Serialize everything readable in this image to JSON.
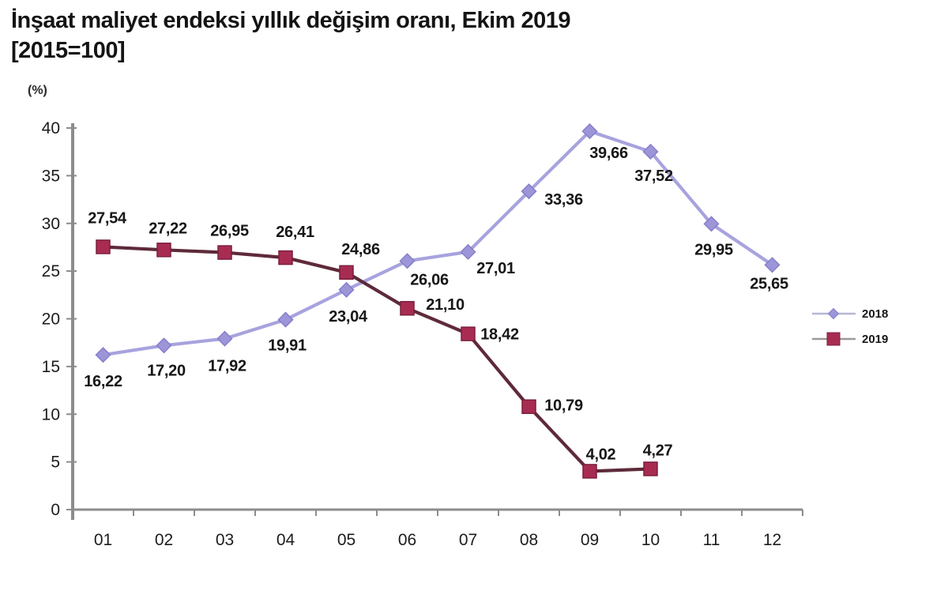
{
  "header": {
    "title_line1": "İnşaat maliyet endeksi yıllık değişim oranı, Ekim 2019",
    "title_line2": "[2015=100]"
  },
  "chart_data": {
    "type": "line",
    "title": "İnşaat maliyet endeksi yıllık değişim oranı, Ekim 2019 [2015=100]",
    "ylabel": "(%)",
    "xlabel": "",
    "ylim": [
      0,
      40
    ],
    "yticks": [
      0,
      5,
      10,
      15,
      20,
      25,
      30,
      35,
      40
    ],
    "grid": false,
    "legend_position": "right",
    "categories": [
      "01",
      "02",
      "03",
      "04",
      "05",
      "06",
      "07",
      "08",
      "09",
      "10",
      "11",
      "12"
    ],
    "series": [
      {
        "name": "2018",
        "marker": "diamond",
        "line_color": "#a7a3de",
        "marker_color": "#9c96d9",
        "marker_edge_color": "#867ecb",
        "legend_line_color": "#b8b6d4",
        "values": [
          16.22,
          17.2,
          17.92,
          19.91,
          23.04,
          26.06,
          27.01,
          33.36,
          39.66,
          37.52,
          29.95,
          25.65
        ],
        "labels": [
          "16,22",
          "17,20",
          "17,92",
          "19,91",
          "23,04",
          "26,06",
          "27,01",
          "33,36",
          "39,66",
          "37,52",
          "29,95",
          "25,65"
        ]
      },
      {
        "name": "2019",
        "marker": "square",
        "line_color": "#5e2a39",
        "marker_color": "#a82c52",
        "marker_edge_color": "#7a1f3d",
        "legend_line_color": "#9a9a9a",
        "values": [
          27.54,
          27.22,
          26.95,
          26.41,
          24.86,
          21.1,
          18.42,
          10.79,
          4.02,
          4.27
        ],
        "labels": [
          "27,54",
          "27,22",
          "26,95",
          "26,41",
          "24,86",
          "21,10",
          "18,42",
          "10,79",
          "4,02",
          "4,27"
        ]
      }
    ]
  },
  "legend": {
    "items": [
      "2018",
      "2019"
    ]
  }
}
